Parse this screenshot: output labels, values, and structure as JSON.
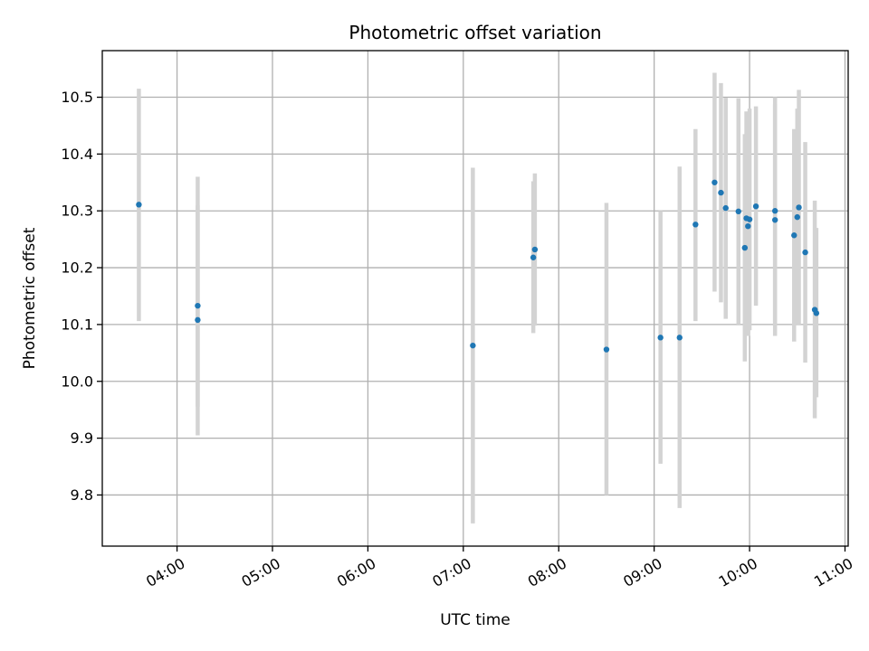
{
  "chart_data": {
    "type": "scatter",
    "title": "Photometric offset variation",
    "xlabel": "UTC time",
    "ylabel": "Photometric offset",
    "x_axis": {
      "kind": "time",
      "range": [
        "03:13",
        "11:02"
      ],
      "ticks": [
        "04:00",
        "05:00",
        "06:00",
        "07:00",
        "08:00",
        "09:00",
        "10:00",
        "11:00"
      ]
    },
    "y_axis": {
      "range": [
        9.71,
        10.582
      ],
      "ticks": [
        "9.8",
        "9.9",
        "10.0",
        "10.1",
        "10.2",
        "10.3",
        "10.4",
        "10.5"
      ]
    },
    "grid": true,
    "colors": {
      "point": "#1f77b4",
      "errorbar": "#d3d3d3",
      "grid": "#b0b0b0"
    },
    "series": [
      {
        "points": [
          {
            "t": "03:36",
            "y": 10.311,
            "lo": 10.106,
            "hi": 10.515
          },
          {
            "t": "04:13",
            "y": 10.133,
            "lo": 9.955,
            "hi": 10.31
          },
          {
            "t": "04:13",
            "y": 10.108,
            "lo": 9.905,
            "hi": 10.36
          },
          {
            "t": "07:06",
            "y": 10.063,
            "lo": 9.75,
            "hi": 10.376
          },
          {
            "t": "07:44",
            "y": 10.218,
            "lo": 10.085,
            "hi": 10.352
          },
          {
            "t": "07:45",
            "y": 10.232,
            "lo": 10.098,
            "hi": 10.366
          },
          {
            "t": "08:30",
            "y": 10.056,
            "lo": 9.8,
            "hi": 10.314
          },
          {
            "t": "09:04",
            "y": 10.077,
            "lo": 9.855,
            "hi": 10.3
          },
          {
            "t": "09:16",
            "y": 10.077,
            "lo": 9.777,
            "hi": 10.378
          },
          {
            "t": "09:26",
            "y": 10.276,
            "lo": 10.106,
            "hi": 10.444
          },
          {
            "t": "09:38",
            "y": 10.35,
            "lo": 10.158,
            "hi": 10.543
          },
          {
            "t": "09:42",
            "y": 10.332,
            "lo": 10.139,
            "hi": 10.525
          },
          {
            "t": "09:45",
            "y": 10.305,
            "lo": 10.11,
            "hi": 10.499
          },
          {
            "t": "09:53",
            "y": 10.299,
            "lo": 10.1,
            "hi": 10.498
          },
          {
            "t": "09:57",
            "y": 10.235,
            "lo": 10.035,
            "hi": 10.435
          },
          {
            "t": "09:58",
            "y": 10.287,
            "lo": 10.1,
            "hi": 10.475
          },
          {
            "t": "09:59",
            "y": 10.273,
            "lo": 10.08,
            "hi": 10.465
          },
          {
            "t": "10:00",
            "y": 10.285,
            "lo": 10.09,
            "hi": 10.48
          },
          {
            "t": "10:04",
            "y": 10.308,
            "lo": 10.133,
            "hi": 10.484
          },
          {
            "t": "10:16",
            "y": 10.3,
            "lo": 10.1,
            "hi": 10.5
          },
          {
            "t": "10:16",
            "y": 10.284,
            "lo": 10.08,
            "hi": 10.488
          },
          {
            "t": "10:28",
            "y": 10.257,
            "lo": 10.07,
            "hi": 10.444
          },
          {
            "t": "10:30",
            "y": 10.289,
            "lo": 10.1,
            "hi": 10.48
          },
          {
            "t": "10:31",
            "y": 10.306,
            "lo": 10.1,
            "hi": 10.513
          },
          {
            "t": "10:35",
            "y": 10.227,
            "lo": 10.033,
            "hi": 10.421
          },
          {
            "t": "10:41",
            "y": 10.126,
            "lo": 9.935,
            "hi": 10.318
          },
          {
            "t": "10:42",
            "y": 10.12,
            "lo": 9.972,
            "hi": 10.27
          }
        ]
      }
    ]
  }
}
